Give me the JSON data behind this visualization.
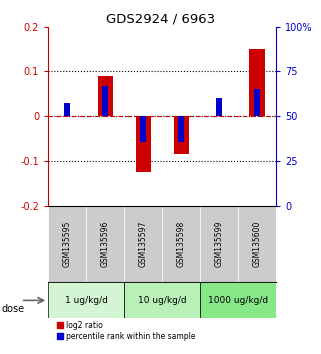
{
  "title": "GDS2924 / 6963",
  "samples": [
    "GSM135595",
    "GSM135596",
    "GSM135597",
    "GSM135598",
    "GSM135599",
    "GSM135600"
  ],
  "log2_ratio": [
    0.0,
    0.09,
    -0.125,
    -0.085,
    0.0,
    0.15
  ],
  "percentile_rank": [
    0.03,
    0.068,
    -0.058,
    -0.058,
    0.04,
    0.06
  ],
  "dose_groups": [
    {
      "label": "1 ug/kg/d",
      "span": [
        0,
        2
      ],
      "color": "#d4f5d4"
    },
    {
      "label": "10 ug/kg/d",
      "span": [
        2,
        4
      ],
      "color": "#b8f0b8"
    },
    {
      "label": "1000 ug/kg/d",
      "span": [
        4,
        6
      ],
      "color": "#88e888"
    }
  ],
  "ylim": [
    -0.2,
    0.2
  ],
  "y2lim": [
    0,
    100
  ],
  "yticks": [
    -0.2,
    -0.1,
    0.0,
    0.1,
    0.2
  ],
  "y2ticks": [
    0,
    25,
    50,
    75,
    100
  ],
  "dotted_lines_black": [
    -0.1,
    0.1
  ],
  "dotted_line_red": 0.0,
  "bar_color_red": "#cc0000",
  "bar_color_blue": "#0000cc",
  "plot_bg": "#ffffff",
  "sample_bg": "#cccccc",
  "left_axis_color": "#cc0000",
  "right_axis_color": "#0000cc",
  "bar_width": 0.4,
  "blue_bar_width": 0.15
}
